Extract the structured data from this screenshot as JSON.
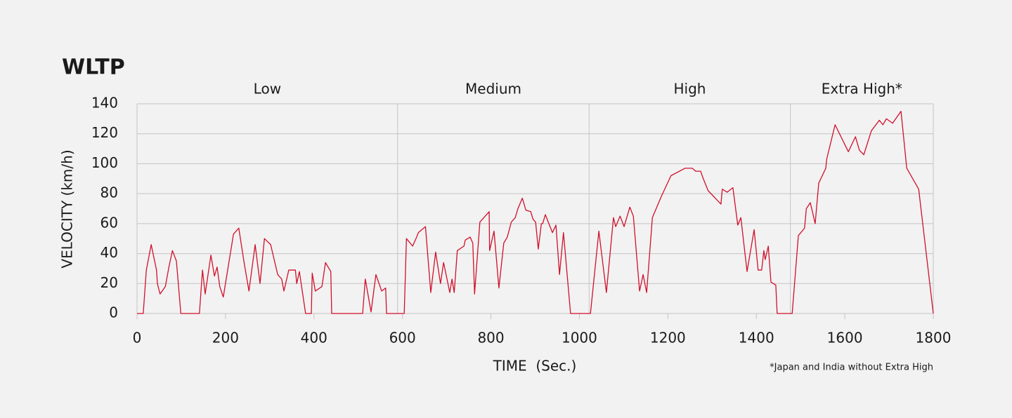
{
  "chart_data": {
    "type": "line",
    "title": "WLTP",
    "x_label": "TIME  (Sec.)",
    "y_label": "VELOCITY (km/h)",
    "annotation": "*Japan and India without Extra High",
    "phases": [
      "Low",
      "Medium",
      "High",
      "Extra High*"
    ],
    "phase_bounds": [
      589,
      1022,
      1477
    ],
    "xlim": [
      0,
      1800
    ],
    "ylim": [
      0,
      140
    ],
    "xticks": [
      0,
      200,
      400,
      600,
      800,
      1000,
      1200,
      1400,
      1600,
      1800
    ],
    "yticks": [
      0,
      20,
      40,
      60,
      80,
      100,
      120,
      140
    ],
    "grid": true,
    "color": "#d0102b",
    "x": [
      0,
      14,
      21,
      32,
      44,
      46,
      52,
      64,
      72,
      80,
      89,
      99,
      141,
      148,
      154,
      167,
      175,
      181,
      187,
      195,
      218,
      230,
      242,
      253,
      267,
      278,
      288,
      302,
      318,
      327,
      332,
      343,
      348,
      358,
      361,
      367,
      381,
      394,
      396,
      403,
      418,
      426,
      438,
      440,
      510,
      516,
      529,
      540,
      553,
      562,
      564,
      604,
      609,
      623,
      632,
      636,
      652,
      664,
      675,
      686,
      693,
      707,
      712,
      717,
      724,
      739,
      742,
      753,
      759,
      763,
      775,
      796,
      797,
      807,
      818,
      829,
      837,
      846,
      855,
      861,
      871,
      879,
      890,
      895,
      901,
      907,
      914,
      917,
      923,
      931,
      939,
      947,
      955,
      964,
      980,
      1025,
      1044,
      1061,
      1077,
      1082,
      1092,
      1101,
      1114,
      1122,
      1136,
      1144,
      1152,
      1165,
      1185,
      1207,
      1239,
      1255,
      1263,
      1274,
      1280,
      1291,
      1320,
      1323,
      1334,
      1347,
      1358,
      1365,
      1379,
      1395,
      1404,
      1412,
      1417,
      1420,
      1427,
      1433,
      1444,
      1447,
      1481,
      1495,
      1509,
      1513,
      1522,
      1533,
      1541,
      1557,
      1559,
      1578,
      1608,
      1624,
      1633,
      1643,
      1660,
      1678,
      1686,
      1694,
      1708,
      1727,
      1740,
      1767,
      1800
    ],
    "values": [
      0,
      0,
      29,
      46,
      29,
      20,
      13,
      18,
      31,
      42,
      35,
      0,
      0,
      29,
      13,
      39,
      25,
      31,
      18,
      11,
      53,
      57,
      34,
      15,
      46,
      20,
      50,
      46,
      26,
      23,
      15,
      29,
      29,
      29,
      20,
      28,
      0,
      0,
      27,
      15,
      18,
      34,
      28,
      0,
      0,
      23,
      1,
      26,
      15,
      17,
      0,
      0,
      50,
      45,
      51,
      54,
      58,
      14,
      41,
      20,
      34,
      14,
      23,
      14,
      42,
      45,
      49,
      51,
      47,
      13,
      61,
      68,
      42,
      55,
      17,
      47,
      51,
      61,
      64,
      70,
      77,
      69,
      68,
      63,
      61,
      43,
      60,
      60,
      66,
      60,
      54,
      59,
      26,
      54,
      0,
      0,
      55,
      14,
      64,
      58,
      65,
      58,
      71,
      65,
      15,
      26,
      14,
      64,
      78,
      92,
      97,
      97,
      95,
      95,
      90,
      82,
      73,
      83,
      81,
      84,
      59,
      64,
      28,
      56,
      29,
      29,
      42,
      36,
      45,
      21,
      19,
      0,
      0,
      52,
      57,
      70,
      74,
      60,
      87,
      97,
      103,
      126,
      108,
      118,
      109,
      106,
      122,
      129,
      126,
      130,
      127,
      135,
      97,
      83,
      0
    ]
  }
}
